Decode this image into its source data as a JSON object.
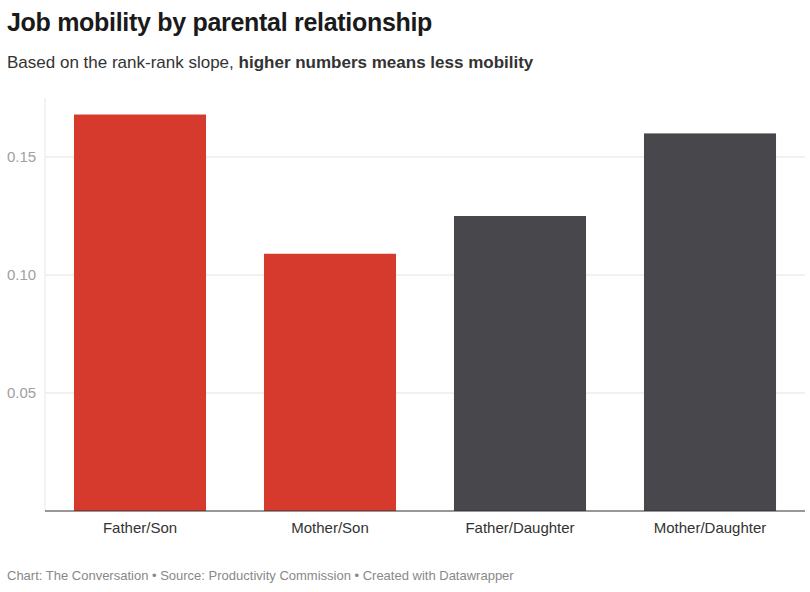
{
  "chart_data": {
    "type": "bar",
    "title": "Job mobility by parental relationship",
    "subtitle": [
      "Based on the rank-rank slope,",
      "higher numbers means less mobility"
    ],
    "source": "Chart: The Conversation • Source: Productivity Commission • Created with Datawrapper",
    "categories": [
      "Father/Son",
      "Mother/Son",
      "Father/Daughter",
      "Mother/Daughter"
    ],
    "values": [
      0.168,
      0.109,
      0.125,
      0.16
    ],
    "colors": [
      "#d63a2c",
      "#d63a2c",
      "#48474c",
      "#48474c"
    ],
    "ylim": [
      0,
      0.175
    ],
    "yticks": [
      0.05,
      {
        "value": 0.1,
        "label": "0.10"
      },
      0.15
    ],
    "grid": true
  }
}
